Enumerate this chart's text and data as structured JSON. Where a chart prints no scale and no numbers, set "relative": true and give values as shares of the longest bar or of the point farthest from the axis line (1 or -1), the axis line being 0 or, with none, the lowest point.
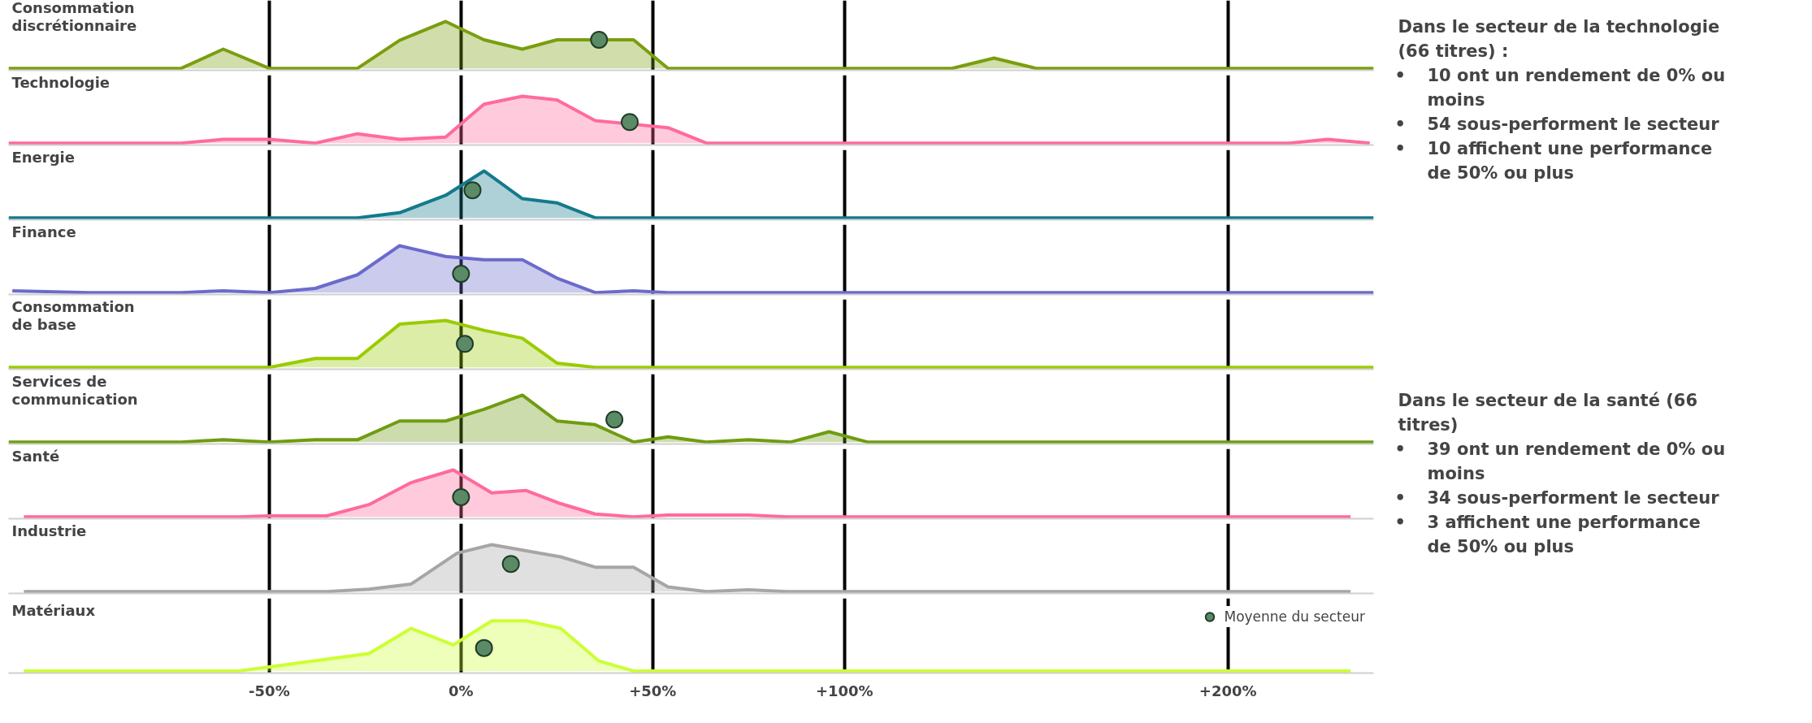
{
  "chart_data": [
    {
      "type": "area",
      "title": "Consommation discrétionnaire",
      "relative": true,
      "xlim": [
        -118,
        238
      ],
      "xticks": [
        {
          "value": -50,
          "label": "-50%"
        },
        {
          "value": 0,
          "label": "0%"
        },
        {
          "value": 50,
          "label": "+50%"
        },
        {
          "value": 100,
          "label": "+100%"
        },
        {
          "value": 200,
          "label": "+200%"
        }
      ],
      "tick_labels": false,
      "grid": "x",
      "series": [
        {
          "type": "area",
          "color": "#7a9e0f",
          "x": [
            -118,
            -73,
            -62,
            -50,
            -27,
            -16,
            -4,
            6,
            16,
            25,
            45,
            54,
            128,
            139,
            150,
            238
          ],
          "values": [
            0,
            0,
            0.41,
            0,
            0,
            0.6,
            1,
            0.61,
            0.41,
            0.61,
            0.61,
            0,
            0,
            0.22,
            0,
            0
          ]
        },
        {
          "type": "scatter",
          "marker": "circle",
          "color": "#5b8a66",
          "x": [
            36
          ],
          "values": [
            0.61
          ]
        }
      ]
    },
    {
      "type": "area",
      "title": "Technologie",
      "relative": true,
      "xlim": [
        -118,
        238
      ],
      "xticks": [
        {
          "value": -50,
          "label": "-50%"
        },
        {
          "value": 0,
          "label": "0%"
        },
        {
          "value": 50,
          "label": "+50%"
        },
        {
          "value": 100,
          "label": "+100%"
        },
        {
          "value": 200,
          "label": "+200%"
        }
      ],
      "tick_labels": false,
      "grid": "x",
      "series": [
        {
          "type": "area",
          "color": "#ff6b9a",
          "x": [
            -118,
            -73,
            -62,
            -50,
            -38,
            -27,
            -16,
            -4,
            6,
            16,
            25,
            35,
            45,
            54,
            64,
            216,
            226,
            237
          ],
          "values": [
            0,
            0,
            0.08,
            0.08,
            0,
            0.2,
            0.08,
            0.13,
            0.83,
            1,
            0.92,
            0.48,
            0.4,
            0.33,
            0,
            0,
            0.08,
            0
          ]
        },
        {
          "type": "scatter",
          "marker": "circle",
          "color": "#5b8a66",
          "x": [
            44
          ],
          "values": [
            0.45
          ]
        }
      ]
    },
    {
      "type": "area",
      "title": "Energie",
      "relative": true,
      "xlim": [
        -118,
        238
      ],
      "xticks": [
        {
          "value": -50,
          "label": "-50%"
        },
        {
          "value": 0,
          "label": "0%"
        },
        {
          "value": 50,
          "label": "+50%"
        },
        {
          "value": 100,
          "label": "+100%"
        },
        {
          "value": 200,
          "label": "+200%"
        }
      ],
      "tick_labels": false,
      "grid": "x",
      "series": [
        {
          "type": "area",
          "color": "#147a8c",
          "x": [
            -118,
            -27,
            -16,
            -4,
            6,
            16,
            25,
            35,
            238
          ],
          "values": [
            0,
            0,
            0.11,
            0.48,
            1,
            0.41,
            0.32,
            0,
            0
          ]
        },
        {
          "type": "scatter",
          "marker": "circle",
          "color": "#5b8a66",
          "x": [
            3
          ],
          "values": [
            0.59
          ]
        }
      ]
    },
    {
      "type": "area",
      "title": "Finance",
      "relative": true,
      "xlim": [
        -118,
        238
      ],
      "xticks": [
        {
          "value": -50,
          "label": "-50%"
        },
        {
          "value": 0,
          "label": "0%"
        },
        {
          "value": 50,
          "label": "+50%"
        },
        {
          "value": 100,
          "label": "+100%"
        },
        {
          "value": 200,
          "label": "+200%"
        }
      ],
      "tick_labels": false,
      "grid": "x",
      "series": [
        {
          "type": "area",
          "color": "#6b6bcc",
          "x": [
            -117,
            -97,
            -73,
            -62,
            -50,
            -38,
            -27,
            -16,
            -4,
            6,
            16,
            25,
            35,
            45,
            54,
            238
          ],
          "values": [
            0.04,
            0,
            0,
            0.04,
            0,
            0.09,
            0.38,
            1,
            0.77,
            0.7,
            0.7,
            0.31,
            0,
            0.04,
            0,
            0
          ]
        },
        {
          "type": "scatter",
          "marker": "circle",
          "color": "#5b8a66",
          "x": [
            0
          ],
          "values": [
            0.4
          ]
        }
      ]
    },
    {
      "type": "area",
      "title": "Consommation de base",
      "relative": true,
      "xlim": [
        -118,
        238
      ],
      "xticks": [
        {
          "value": -50,
          "label": "-50%"
        },
        {
          "value": 0,
          "label": "0%"
        },
        {
          "value": 50,
          "label": "+50%"
        },
        {
          "value": 100,
          "label": "+100%"
        },
        {
          "value": 200,
          "label": "+200%"
        }
      ],
      "tick_labels": false,
      "grid": "x",
      "series": [
        {
          "type": "area",
          "color": "#99cc00",
          "x": [
            -118,
            -50,
            -38,
            -27,
            -16,
            -4,
            6,
            16,
            25,
            35,
            238
          ],
          "values": [
            0,
            0,
            0.19,
            0.19,
            0.92,
            1,
            0.79,
            0.62,
            0.09,
            0,
            0
          ]
        },
        {
          "type": "scatter",
          "marker": "circle",
          "color": "#5b8a66",
          "x": [
            1
          ],
          "values": [
            0.5
          ]
        }
      ]
    },
    {
      "type": "area",
      "title": "Services de communication",
      "relative": true,
      "xlim": [
        -118,
        238
      ],
      "xticks": [
        {
          "value": -50,
          "label": "-50%"
        },
        {
          "value": 0,
          "label": "0%"
        },
        {
          "value": 50,
          "label": "+50%"
        },
        {
          "value": 100,
          "label": "+100%"
        },
        {
          "value": 200,
          "label": "+200%"
        }
      ],
      "tick_labels": false,
      "grid": "x",
      "series": [
        {
          "type": "area",
          "color": "#6f9c10",
          "x": [
            -118,
            -73,
            -62,
            -50,
            -38,
            -27,
            -16,
            -4,
            6,
            16,
            25,
            35,
            45,
            54,
            64,
            75,
            86,
            96,
            106,
            238
          ],
          "values": [
            0,
            0,
            0.05,
            0,
            0.05,
            0.05,
            0.45,
            0.45,
            0.7,
            1,
            0.45,
            0.37,
            0,
            0.11,
            0,
            0.05,
            0,
            0.22,
            0,
            0
          ]
        },
        {
          "type": "scatter",
          "marker": "circle",
          "color": "#5b8a66",
          "x": [
            40
          ],
          "values": [
            0.48
          ]
        }
      ]
    },
    {
      "type": "area",
      "title": "Santé",
      "relative": true,
      "xlim": [
        -118,
        238
      ],
      "xticks": [
        {
          "value": -50,
          "label": "-50%"
        },
        {
          "value": 0,
          "label": "0%"
        },
        {
          "value": 50,
          "label": "+50%"
        },
        {
          "value": 100,
          "label": "+100%"
        },
        {
          "value": 200,
          "label": "+200%"
        }
      ],
      "tick_labels": false,
      "grid": "x",
      "series": [
        {
          "type": "area",
          "color": "#ff6b9a",
          "x": [
            -114,
            -58,
            -50,
            -35,
            -24,
            -13,
            -2,
            8,
            17,
            26,
            35,
            45,
            54,
            75,
            85,
            232
          ],
          "values": [
            0,
            0,
            0.02,
            0.02,
            0.26,
            0.73,
            1,
            0.51,
            0.56,
            0.28,
            0.06,
            0,
            0.04,
            0.04,
            0,
            0
          ]
        },
        {
          "type": "scatter",
          "marker": "circle",
          "color": "#5b8a66",
          "x": [
            0
          ],
          "values": [
            0.42
          ]
        }
      ]
    },
    {
      "type": "area",
      "title": "Industrie",
      "relative": true,
      "xlim": [
        -118,
        238
      ],
      "xticks": [
        {
          "value": -50,
          "label": "-50%"
        },
        {
          "value": 0,
          "label": "0%"
        },
        {
          "value": 50,
          "label": "+50%"
        },
        {
          "value": 100,
          "label": "+100%"
        },
        {
          "value": 200,
          "label": "+200%"
        }
      ],
      "tick_labels": false,
      "grid": "x",
      "series": [
        {
          "type": "area",
          "color": "#a6a6a6",
          "x": [
            -114,
            -35,
            -24,
            -13,
            -1,
            8,
            17,
            26,
            35,
            45,
            54,
            64,
            75,
            85,
            232
          ],
          "values": [
            0,
            0,
            0.05,
            0.16,
            0.82,
            1,
            0.87,
            0.74,
            0.52,
            0.52,
            0.1,
            0,
            0.04,
            0,
            0
          ]
        },
        {
          "type": "scatter",
          "marker": "circle",
          "color": "#5b8a66",
          "x": [
            13
          ],
          "values": [
            0.59
          ]
        }
      ]
    },
    {
      "type": "area",
      "title": "Matériaux",
      "relative": true,
      "xlim": [
        -118,
        238
      ],
      "xticks": [
        {
          "value": -50,
          "label": "-50%"
        },
        {
          "value": 0,
          "label": "0%"
        },
        {
          "value": 50,
          "label": "+50%"
        },
        {
          "value": 100,
          "label": "+100%"
        },
        {
          "value": 200,
          "label": "+200%"
        }
      ],
      "tick_labels": "x",
      "grid": "x",
      "legend": "top right",
      "series": [
        {
          "type": "area",
          "color": "#ccff33",
          "x": [
            -114,
            -58,
            -24,
            -13,
            -2,
            8,
            17,
            26,
            36,
            45,
            232
          ],
          "values": [
            0,
            0,
            0.35,
            0.85,
            0.52,
            1,
            1,
            0.85,
            0.2,
            0,
            0
          ]
        },
        {
          "type": "scatter",
          "marker": "circle",
          "name": "Moyenne du secteur",
          "color": "#5b8a66",
          "x": [
            6
          ],
          "values": [
            0.46
          ]
        }
      ]
    },
    {
      "type": "other",
      "annotations": [
        "Dans le secteur de la technologie (66 titres) :",
        "• 10 ont un rendement de 0% ou moins",
        "• 54 sous-performent le secteur",
        "• 10 affichent une performance de 50% ou plus"
      ]
    },
    {
      "type": "other",
      "annotations": [
        "Dans le secteur de la santé (66 titres)",
        "• 39 ont un rendement de 0% ou moins",
        "• 34 sous-performent le secteur",
        "• 3 affichent une performance de 50% ou plus"
      ]
    }
  ]
}
